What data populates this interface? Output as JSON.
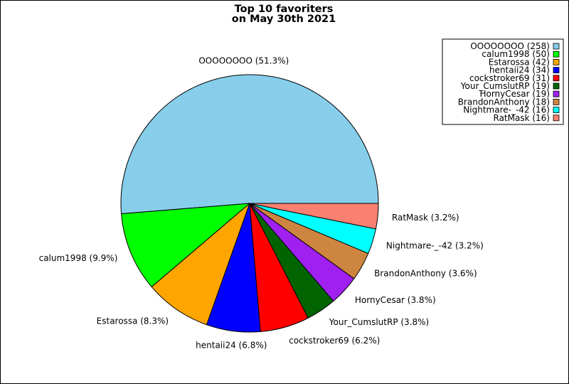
{
  "chart_data": {
    "type": "pie",
    "title": [
      "Top 10 favoriters",
      "on May 30th 2021"
    ],
    "legend_position": "top-right",
    "slices": [
      {
        "name": "OOOOOOOO",
        "value": 258,
        "percent_label": "OOOOOOOO (51.3%)",
        "legend_label": "OOOOOOOO (258)",
        "color": "#87ceeb"
      },
      {
        "name": "calum1998",
        "value": 50,
        "percent_label": "calum1998 (9.9%)",
        "legend_label": "calum1998 (50)",
        "color": "#00ff00"
      },
      {
        "name": "Estarossa",
        "value": 42,
        "percent_label": "Estarossa (8.3%)",
        "legend_label": "Estarossa (42)",
        "color": "#ffa500"
      },
      {
        "name": "hentaii24",
        "value": 34,
        "percent_label": "hentaii24 (6.8%)",
        "legend_label": "hentaii24 (34)",
        "color": "#0000ff"
      },
      {
        "name": "cockstroker69",
        "value": 31,
        "percent_label": "cockstroker69 (6.2%)",
        "legend_label": "cockstroker69 (31)",
        "color": "#ff0000"
      },
      {
        "name": "Your_CumslutRP",
        "value": 19,
        "percent_label": "Your_CumslutRP (3.8%)",
        "legend_label": "Your_CumslutRP (19)",
        "color": "#006400"
      },
      {
        "name": "HornyCesar",
        "value": 19,
        "percent_label": "HornyCesar (3.8%)",
        "legend_label": "HornyCesar (19)",
        "color": "#a020f0"
      },
      {
        "name": "BrandonAnthony",
        "value": 18,
        "percent_label": "BrandonAnthony (3.6%)",
        "legend_label": "BrandonAnthony (18)",
        "color": "#cd853f"
      },
      {
        "name": "Nightmare-_-42",
        "value": 16,
        "percent_label": "Nightmare-_-42 (3.2%)",
        "legend_label": "Nightmare-_-42 (16)",
        "color": "#00ffff"
      },
      {
        "name": "RatMask",
        "value": 16,
        "percent_label": "RatMask (3.2%)",
        "legend_label": "RatMask (16)",
        "color": "#fa8072"
      }
    ]
  }
}
